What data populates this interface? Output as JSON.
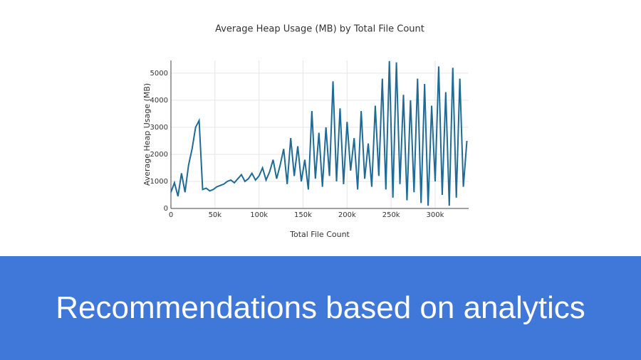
{
  "chart_data": {
    "type": "line",
    "title": "Average Heap Usage (MB) by Total File Count",
    "x_label": "Total File Count",
    "y_label": "Average Heap Usage (MB)",
    "x": [
      0,
      4000,
      8000,
      12000,
      16000,
      20000,
      24000,
      28000,
      32000,
      36000,
      40000,
      44000,
      48000,
      52000,
      56000,
      60000,
      64000,
      68000,
      72000,
      76000,
      80000,
      84000,
      88000,
      92000,
      96000,
      100000,
      104000,
      108000,
      112000,
      116000,
      120000,
      124000,
      128000,
      132000,
      136000,
      140000,
      144000,
      148000,
      152000,
      156000,
      160000,
      164000,
      168000,
      172000,
      176000,
      180000,
      184000,
      188000,
      192000,
      196000,
      200000,
      204000,
      208000,
      212000,
      216000,
      220000,
      224000,
      228000,
      232000,
      236000,
      240000,
      244000,
      248000,
      252000,
      256000,
      260000,
      264000,
      268000,
      272000,
      276000,
      280000,
      284000,
      288000,
      292000,
      296000,
      300000,
      304000,
      308000,
      312000,
      316000,
      320000,
      324000,
      328000,
      332000,
      336000
    ],
    "series": [
      {
        "name": "Average Heap Usage (MB)",
        "color": "#1f6b96",
        "values": [
          600,
          950,
          450,
          1300,
          600,
          1600,
          2200,
          3000,
          3250,
          700,
          750,
          650,
          700,
          800,
          850,
          900,
          1000,
          1050,
          950,
          1100,
          1250,
          1000,
          1100,
          1300,
          1050,
          1200,
          1500,
          1050,
          1350,
          1800,
          1100,
          1600,
          2200,
          900,
          2600,
          1200,
          2300,
          1000,
          1800,
          700,
          3600,
          1100,
          2800,
          800,
          3000,
          1200,
          4700,
          1000,
          3700,
          900,
          3200,
          1400,
          2600,
          700,
          3600,
          1100,
          2400,
          800,
          3800,
          1200,
          4800,
          700,
          5450,
          400,
          5400,
          900,
          4200,
          300,
          4000,
          600,
          4800,
          200,
          4600,
          100,
          3800,
          1000,
          5250,
          500,
          4300,
          100,
          5200,
          400,
          4800,
          800,
          2500
        ]
      }
    ],
    "xlim": [
      0,
      338000
    ],
    "ylim": [
      0,
      5470
    ],
    "xticks": [
      0,
      {
        "value": 50000,
        "label": "50k"
      },
      {
        "value": 100000,
        "label": "100k"
      },
      {
        "value": 150000,
        "label": "150k"
      },
      {
        "value": 200000,
        "label": "200k"
      },
      {
        "value": 250000,
        "label": "250k"
      },
      {
        "value": 300000,
        "label": "300k"
      }
    ],
    "yticks": [
      0,
      1000,
      2000,
      3000,
      4000,
      5000
    ],
    "grid": true
  },
  "caption": "Recommendations based on analytics"
}
